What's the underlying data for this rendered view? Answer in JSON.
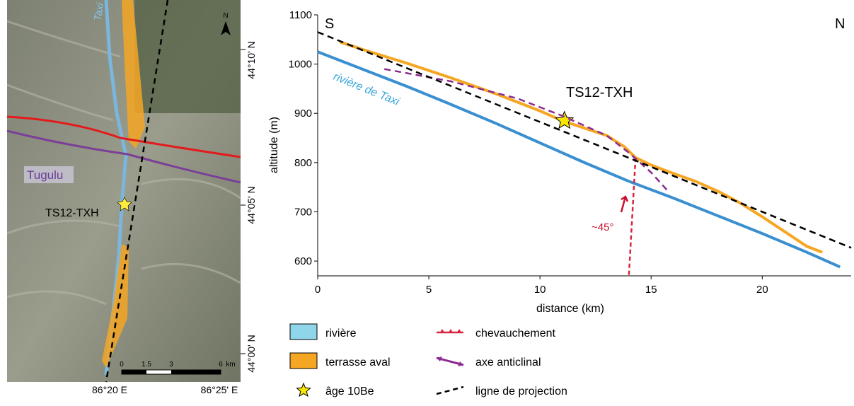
{
  "map": {
    "river_label": "Taxi",
    "fold_label": "Tugulu",
    "site_label": "TS12-TXH",
    "north": "N",
    "lat_labels": [
      "44°10' N",
      "44°05' N",
      "44°00' N"
    ],
    "lon_labels": [
      "86°20 E",
      "86°25' E"
    ],
    "scale_labels": [
      "0",
      "1.5",
      "3",
      "6",
      "km"
    ]
  },
  "chart_data": {
    "type": "line",
    "x_label": "distance (km)",
    "y_label": "altitude (m)",
    "annotations": {
      "south": "S",
      "north": "N",
      "river": "rivière de Taxi",
      "angle": "~45°",
      "site": "TS12-TXH"
    },
    "xlim": [
      0,
      24
    ],
    "xticks": [
      0,
      5,
      10,
      15,
      20
    ],
    "ylim": [
      570,
      1100
    ],
    "yticks": [
      600,
      700,
      800,
      900,
      1000,
      1100
    ],
    "series": [
      {
        "name": "rivière",
        "color": "#3a8fd0",
        "swatch": "#8fd6ea",
        "style": "line",
        "x": [
          0,
          2,
          4,
          6,
          8,
          10,
          12,
          14,
          16,
          18,
          20,
          22,
          23.5
        ],
        "values": [
          1025,
          990,
          955,
          918,
          880,
          840,
          800,
          762,
          728,
          692,
          656,
          618,
          588
        ]
      },
      {
        "name": "terrasse aval",
        "color": "#f5a623",
        "swatch": "#f5a623",
        "style": "line",
        "x": [
          1,
          2,
          4,
          6,
          8,
          10,
          11,
          12,
          13,
          13.8,
          14.3,
          15,
          16,
          17,
          18,
          19,
          20,
          21,
          22,
          22.7
        ],
        "values": [
          1045,
          1030,
          1002,
          972,
          940,
          905,
          885,
          870,
          855,
          832,
          810,
          795,
          778,
          762,
          742,
          718,
          690,
          660,
          630,
          618
        ]
      },
      {
        "name": "âge 10Be",
        "color": "#f7e600",
        "style": "star",
        "x": [
          11.1
        ],
        "values": [
          885
        ]
      },
      {
        "name": "chevauchement",
        "color": "#d7263d",
        "style": "thrust",
        "x": [
          14.3,
          14
        ],
        "values": [
          810,
          570
        ]
      },
      {
        "name": "axe anticlinal",
        "color": "#8b2a8f",
        "style": "axis",
        "x": [
          3,
          6,
          9,
          11,
          13,
          14,
          15,
          15.8
        ],
        "values": [
          990,
          965,
          930,
          895,
          855,
          820,
          780,
          740
        ]
      },
      {
        "name": "ligne de projection",
        "color": "#000000",
        "style": "dashed",
        "x": [
          0,
          24
        ],
        "values": [
          1065,
          627
        ]
      }
    ]
  }
}
